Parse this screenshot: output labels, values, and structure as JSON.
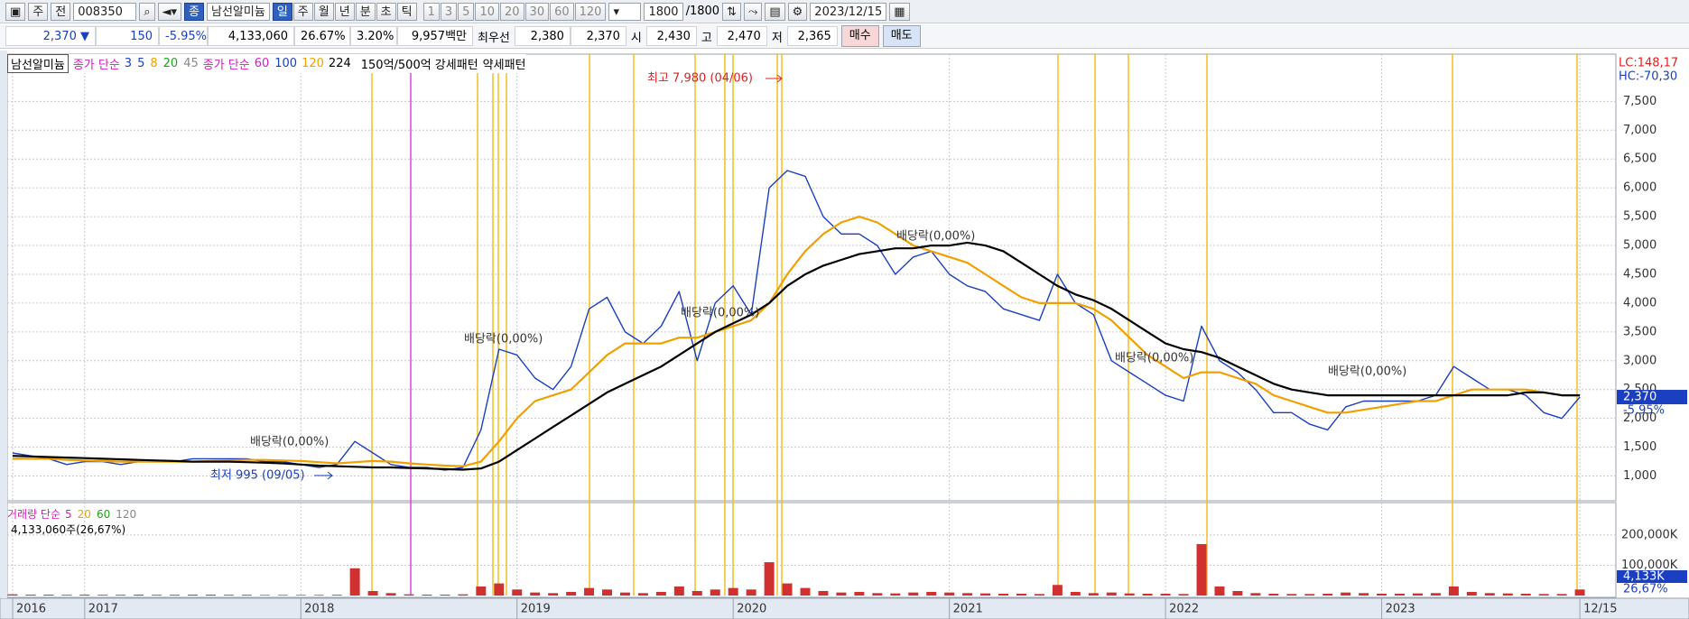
{
  "toolbar": {
    "market": "주",
    "mode": "전",
    "code": "008350",
    "name_icon": "종",
    "name": "남선알미늄",
    "periods": [
      "일",
      "주",
      "월",
      "년",
      "분",
      "초",
      "틱"
    ],
    "intervals": [
      "1",
      "3",
      "5",
      "10",
      "20",
      "30",
      "60",
      "120"
    ],
    "count": "1800",
    "max_count": "/1800",
    "date": "2023/12/15"
  },
  "info_bar": {
    "price": "2,370 ▼",
    "change": "150",
    "change_pct": "-5.95%",
    "volume": "4,133,060",
    "volume_ratio": "26.67%",
    "turnover": "3.20%",
    "amount": "9,957백만",
    "best_label": "최우선",
    "ask": "2,380",
    "bid": "2,370",
    "open_label": "시",
    "open": "2,430",
    "high_label": "고",
    "high": "2,470",
    "low_label": "저",
    "low": "2,365",
    "buy": "매수",
    "sell": "매도"
  },
  "legend": {
    "ma_label": "종가 단순",
    "short_periods": [
      "3",
      "5",
      "8",
      "20",
      "45"
    ],
    "ma_label_2": "종가 단순",
    "long_periods": [
      "60",
      "100"
    ],
    "pattern_strong": "150억/500억 강세패턴",
    "pattern_weak": "약세패턴"
  },
  "volume_legend": {
    "label": "거래량 단순",
    "periods": [
      "5",
      "20",
      "60",
      "120"
    ],
    "total": "4,133,060주(26,67%)"
  },
  "right_axis": {
    "lc": "LC:148,17",
    "hc": "HC:-70,30",
    "price": "2,370",
    "change": "-5,95%",
    "volume": "4,133K",
    "volume_pct": "26,67%"
  },
  "chart_data": [
    {
      "type": "line",
      "grid": true,
      "xlim": [
        -0.3,
        89
      ],
      "xticks": [
        {
          "value": 0,
          "label": "2016"
        },
        {
          "value": 4,
          "label": "2017"
        },
        {
          "value": 16,
          "label": "2018"
        },
        {
          "value": 28,
          "label": "2019"
        },
        {
          "value": 40,
          "label": "2020"
        },
        {
          "value": 52,
          "label": "2021"
        },
        {
          "value": 64,
          "label": "2022"
        },
        {
          "value": 76,
          "label": "2023"
        },
        {
          "value": 87,
          "label": "12/15"
        }
      ],
      "ylim": [
        570,
        8320
      ],
      "yticks": [
        {
          "value": 1000,
          "label": "1,000"
        },
        {
          "value": 1500,
          "label": "1,500"
        },
        {
          "value": 2000,
          "label": "2,000"
        },
        {
          "value": 2500,
          "label": "2,500"
        },
        {
          "value": 3000,
          "label": "3,000"
        },
        {
          "value": 3500,
          "label": "3,500"
        },
        {
          "value": 4000,
          "label": "4,000"
        },
        {
          "value": 4500,
          "label": "4,500"
        },
        {
          "value": 5000,
          "label": "5,000"
        },
        {
          "value": 5500,
          "label": "5,500"
        },
        {
          "value": 6000,
          "label": "6,000"
        },
        {
          "value": 6500,
          "label": "6,500"
        },
        {
          "value": 7000,
          "label": "7,000"
        },
        {
          "value": 7500,
          "label": "7,500"
        }
      ],
      "series": [
        {
          "name": "남선알미늄",
          "color": "#1a3fc0",
          "values": [
            1400,
            1350,
            1300,
            1200,
            1250,
            1250,
            1200,
            1250,
            1250,
            1250,
            1300,
            1300,
            1300,
            1300,
            1250,
            1250,
            1200,
            1150,
            1200,
            1600,
            1400,
            1200,
            1150,
            1150,
            1100,
            1150,
            1800,
            3200,
            3100,
            2700,
            2500,
            2900,
            3900,
            4100,
            3500,
            3300,
            3600,
            4200,
            3000,
            4000,
            4300,
            3800,
            6000,
            6300,
            6200,
            5500,
            5200,
            5200,
            5000,
            4500,
            4800,
            4900,
            4500,
            4300,
            4200,
            3900,
            3800,
            3700,
            4500,
            4000,
            3800,
            3000,
            2800,
            2600,
            2400,
            2300,
            3600,
            3000,
            2800,
            2500,
            2100,
            2100,
            1900,
            1800,
            2200,
            2300,
            2300,
            2300,
            2300,
            2400,
            2900,
            2700,
            2500,
            2500,
            2400,
            2100,
            2000,
            2370
          ]
        },
        {
          "name": "120",
          "color": "#f0a000",
          "values": [
            1300,
            1300,
            1300,
            1280,
            1270,
            1260,
            1250,
            1250,
            1250,
            1250,
            1250,
            1260,
            1270,
            1280,
            1280,
            1270,
            1260,
            1240,
            1220,
            1240,
            1260,
            1250,
            1220,
            1200,
            1180,
            1170,
            1250,
            1600,
            2000,
            2300,
            2400,
            2500,
            2800,
            3100,
            3300,
            3300,
            3300,
            3400,
            3400,
            3500,
            3600,
            3700,
            4000,
            4500,
            4900,
            5200,
            5400,
            5500,
            5400,
            5200,
            5000,
            4900,
            4800,
            4700,
            4500,
            4300,
            4100,
            4000,
            4000,
            4000,
            3900,
            3700,
            3400,
            3100,
            2900,
            2700,
            2800,
            2800,
            2700,
            2600,
            2400,
            2300,
            2200,
            2100,
            2100,
            2150,
            2200,
            2250,
            2300,
            2300,
            2400,
            2500,
            2500,
            2500,
            2500,
            2450,
            2400,
            2400
          ]
        },
        {
          "name": "224",
          "color": "#000000",
          "values": [
            1350,
            1340,
            1330,
            1320,
            1310,
            1300,
            1290,
            1280,
            1270,
            1260,
            1250,
            1250,
            1250,
            1240,
            1230,
            1220,
            1200,
            1180,
            1170,
            1160,
            1150,
            1150,
            1140,
            1130,
            1120,
            1110,
            1130,
            1250,
            1450,
            1650,
            1850,
            2050,
            2250,
            2450,
            2600,
            2750,
            2900,
            3100,
            3300,
            3500,
            3650,
            3800,
            4000,
            4300,
            4500,
            4650,
            4750,
            4850,
            4900,
            4950,
            4950,
            5000,
            5000,
            5050,
            5000,
            4900,
            4700,
            4500,
            4300,
            4150,
            4050,
            3900,
            3700,
            3500,
            3300,
            3200,
            3150,
            3050,
            2900,
            2750,
            2600,
            2500,
            2450,
            2400,
            2400,
            2400,
            2400,
            2400,
            2400,
            2400,
            2400,
            2400,
            2400,
            2400,
            2450,
            2450,
            2400,
            2400
          ]
        }
      ],
      "annotations": [
        "배당락(0,00%)",
        "배당락(0,00%)",
        "배당락(0,00%)",
        "배당락(0,00%)",
        "배당락(0,00%)",
        "배당락(0,00%)",
        "최고 7,980 (04/06)",
        "최저 995 (09/05)"
      ]
    },
    {
      "type": "bar",
      "color": "#d03030",
      "ylim": [
        0,
        307000
      ],
      "yticks": [
        {
          "value": 100000,
          "label": "100,000K"
        },
        {
          "value": 200000,
          "label": "200,000K"
        }
      ],
      "values": [
        4000,
        3000,
        3000,
        2500,
        3000,
        2500,
        2500,
        3000,
        2500,
        2500,
        3000,
        3000,
        2500,
        2500,
        2000,
        2000,
        2000,
        2000,
        2500,
        90000,
        15000,
        8000,
        4000,
        3000,
        3000,
        4000,
        30000,
        40000,
        20000,
        10000,
        8000,
        12000,
        25000,
        20000,
        10000,
        8000,
        12000,
        30000,
        15000,
        20000,
        25000,
        20000,
        110000,
        40000,
        25000,
        15000,
        10000,
        12000,
        8000,
        7000,
        10000,
        12000,
        10000,
        8000,
        7000,
        6000,
        6000,
        5000,
        35000,
        12000,
        8000,
        10000,
        7000,
        6000,
        6000,
        5000,
        170000,
        30000,
        15000,
        8000,
        6000,
        5000,
        5000,
        6000,
        10000,
        8000,
        6000,
        6000,
        7000,
        8000,
        30000,
        12000,
        8000,
        7000,
        6000,
        5000,
        5000,
        20000
      ]
    }
  ]
}
